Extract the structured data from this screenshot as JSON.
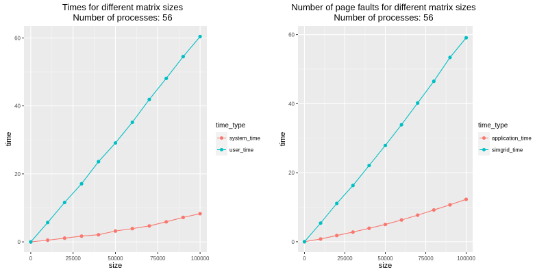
{
  "chart_data": [
    {
      "type": "line",
      "title": "Times for different matrix sizes",
      "subtitle": "Number of processes: 56",
      "xlabel": "size",
      "ylabel": "time",
      "xlim": [
        -4000,
        104000
      ],
      "ylim": [
        -3,
        63.5
      ],
      "x_ticks": [
        0,
        25000,
        50000,
        75000,
        100000
      ],
      "y_ticks": [
        0,
        20,
        40,
        60
      ],
      "x_tick_labels": [
        "0",
        "25000",
        "50000",
        "75000",
        "100000"
      ],
      "y_tick_labels": [
        "0",
        "20",
        "40",
        "60"
      ],
      "grid": true,
      "legend_position": "right",
      "legend_title": "time_type",
      "x": [
        0,
        10000,
        20000,
        30000,
        40000,
        50000,
        60000,
        70000,
        80000,
        90000,
        100000
      ],
      "series": [
        {
          "name": "system_time",
          "color": "#F8766D",
          "values": [
            0,
            0.5,
            1.1,
            1.7,
            2.1,
            3.2,
            3.9,
            4.7,
            5.9,
            7.2,
            8.3
          ]
        },
        {
          "name": "user_time",
          "color": "#00BFC4",
          "values": [
            0,
            5.7,
            11.6,
            17.1,
            23.6,
            29.1,
            35.2,
            41.9,
            48.1,
            54.5,
            60.4
          ]
        }
      ]
    },
    {
      "type": "line",
      "title": "Number of page faults for different matrix sizes",
      "subtitle": "Number of processes: 56",
      "xlabel": "size",
      "ylabel": "time",
      "xlim": [
        -4000,
        104000
      ],
      "ylim": [
        -3,
        62.5
      ],
      "x_ticks": [
        0,
        25000,
        50000,
        75000,
        100000
      ],
      "y_ticks": [
        0,
        20,
        40,
        60
      ],
      "x_tick_labels": [
        "0",
        "25000",
        "50000",
        "75000",
        "100000"
      ],
      "y_tick_labels": [
        "0",
        "20",
        "40",
        "60"
      ],
      "grid": true,
      "legend_position": "right",
      "legend_title": "time_type",
      "x": [
        0,
        10000,
        20000,
        30000,
        40000,
        50000,
        60000,
        70000,
        80000,
        90000,
        100000
      ],
      "series": [
        {
          "name": "application_time",
          "color": "#F8766D",
          "values": [
            0,
            0.8,
            1.8,
            2.8,
            3.9,
            5.0,
            6.3,
            7.7,
            9.2,
            10.7,
            12.3
          ]
        },
        {
          "name": "simgrid_time",
          "color": "#00BFC4",
          "values": [
            0,
            5.4,
            11.1,
            16.3,
            22.1,
            27.9,
            33.9,
            40.2,
            46.5,
            53.4,
            59.1
          ]
        }
      ]
    }
  ]
}
